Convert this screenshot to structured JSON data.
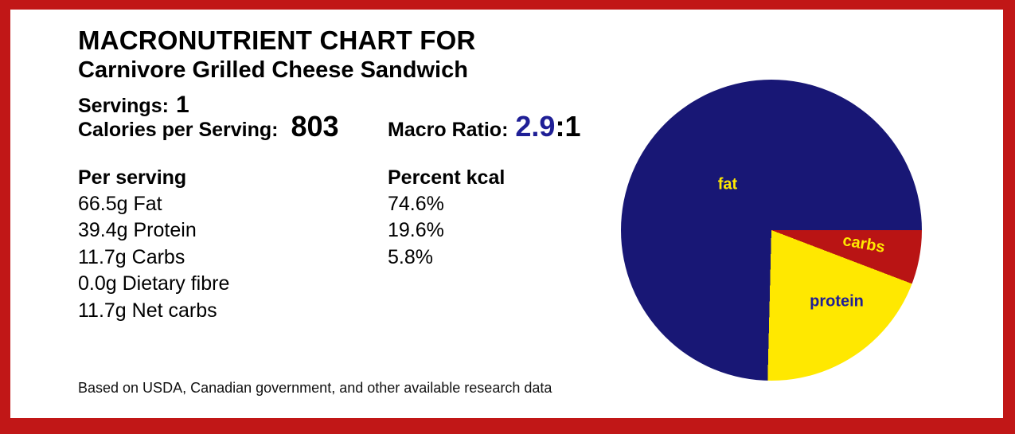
{
  "header": {
    "title_line1": "MACRONUTRIENT CHART FOR",
    "title_line2": "Carnivore Grilled Cheese Sandwich"
  },
  "stats": {
    "servings_label": "Servings:",
    "servings_value": "1",
    "calories_label": "Calories per Serving:",
    "calories_value": "803",
    "macro_ratio_label": "Macro Ratio:",
    "macro_ratio_value": "2.9",
    "macro_ratio_suffix": ":1"
  },
  "table": {
    "per_serving_header": "Per serving",
    "percent_header": "Percent kcal",
    "per_serving_rows": [
      "66.5g Fat",
      "39.4g Protein",
      "11.7g Carbs",
      "0.0g Dietary fibre",
      "11.7g Net carbs"
    ],
    "percent_rows": [
      "74.6%",
      "19.6%",
      "5.8%"
    ]
  },
  "footer": {
    "note": "Based on USDA, Canadian government, and other available research data"
  },
  "colors": {
    "frame_red": "#c11717",
    "ratio_blue": "#1f1f96",
    "pie_navy": "#181775",
    "pie_yellow": "#ffe800",
    "pie_red": "#b91414"
  },
  "chart_data": {
    "type": "pie",
    "title": "Macronutrient breakdown (percent of kcal)",
    "categories": [
      "fat",
      "protein",
      "carbs"
    ],
    "values": [
      74.6,
      19.6,
      5.8
    ],
    "slices": [
      {
        "label": "carbs",
        "value_pct": 5.8,
        "color": "#b91414",
        "label_color": "#ffe800"
      },
      {
        "label": "protein",
        "value_pct": 19.6,
        "color": "#ffe800",
        "label_color": "#1f1f96"
      },
      {
        "label": "fat",
        "value_pct": 74.6,
        "color": "#181775",
        "label_color": "#ffe800"
      }
    ],
    "start_angle_css_deg": 90,
    "direction": "clockwise",
    "legend": "labels drawn inside slices"
  }
}
